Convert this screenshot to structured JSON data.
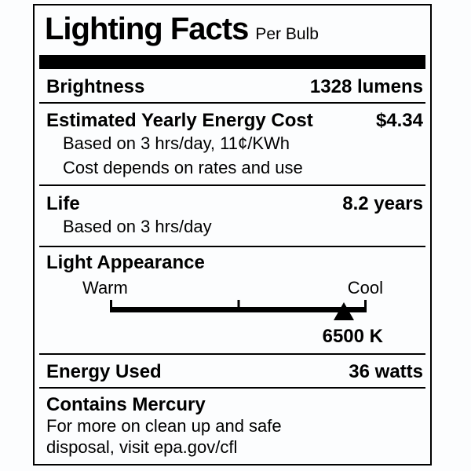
{
  "colors": {
    "ink": "#000000",
    "background": "#fcfdfe"
  },
  "header": {
    "title": "Lighting Facts",
    "subtitle": "Per Bulb"
  },
  "rows": {
    "brightness": {
      "label": "Brightness",
      "value": "1328 lumens"
    },
    "energy_cost": {
      "label": "Estimated Yearly Energy Cost",
      "value": "$4.34",
      "notes": [
        "Based on 3 hrs/day, 11¢/KWh",
        "Cost depends on rates and use"
      ]
    },
    "life": {
      "label": "Life",
      "value": "8.2 years",
      "notes": [
        "Based on 3 hrs/day"
      ]
    },
    "light_appearance": {
      "label": "Light Appearance",
      "warm_label": "Warm",
      "cool_label": "Cool",
      "kelvin": "6500 K",
      "marker_percent": 91,
      "scale_ticks_percent": [
        0,
        50,
        100
      ]
    },
    "energy_used": {
      "label": "Energy Used",
      "value": "36 watts"
    },
    "mercury": {
      "label": "Contains Mercury",
      "lines": [
        "For more on clean up and safe",
        "disposal, visit epa.gov/cfl"
      ]
    }
  }
}
